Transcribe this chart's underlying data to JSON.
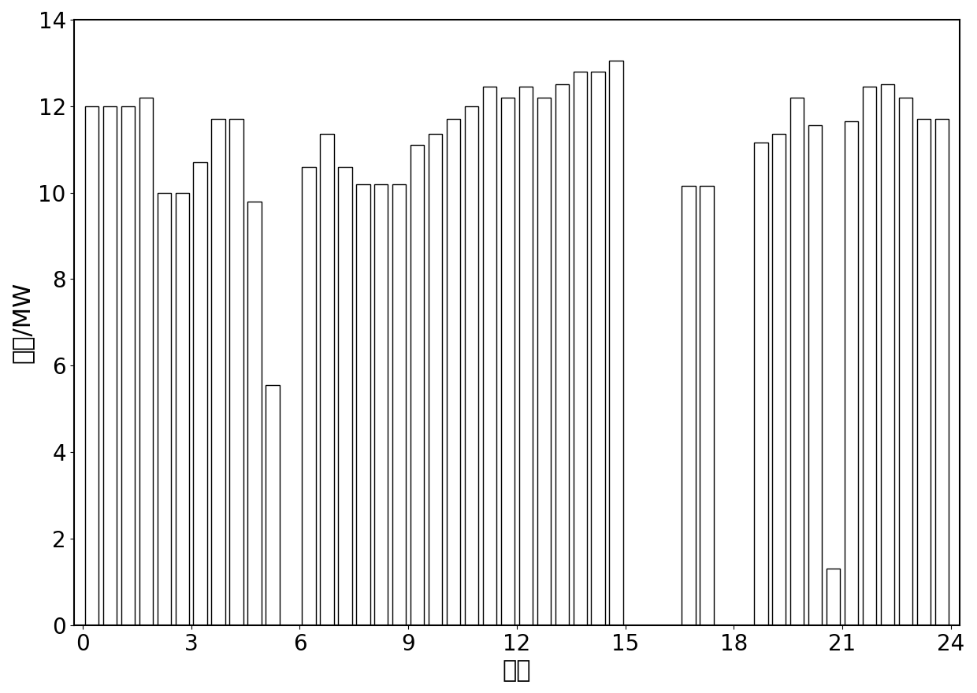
{
  "xlabel": "时刻",
  "ylabel": "功率/MW",
  "xlim": [
    -0.25,
    24.25
  ],
  "ylim": [
    0,
    14
  ],
  "xticks": [
    0,
    3,
    6,
    9,
    12,
    15,
    18,
    21,
    24
  ],
  "yticks": [
    0,
    2,
    4,
    6,
    8,
    10,
    12,
    14
  ],
  "bar_positions": [
    0.25,
    0.75,
    1.25,
    1.75,
    2.25,
    2.75,
    3.25,
    3.75,
    4.25,
    4.75,
    5.25,
    5.75,
    6.25,
    6.75,
    7.25,
    7.75,
    8.25,
    8.75,
    9.25,
    9.75,
    10.25,
    10.75,
    11.25,
    11.75,
    12.25,
    12.75,
    13.25,
    13.75,
    14.25,
    14.75,
    16.75,
    17.25,
    17.75,
    18.25,
    18.75,
    19.25,
    19.75,
    20.25,
    20.75,
    21.25,
    21.75,
    22.25,
    22.75,
    23.25,
    23.75
  ],
  "bar_heights": [
    12.0,
    12.0,
    12.0,
    12.2,
    10.0,
    10.0,
    10.7,
    11.7,
    11.7,
    9.8,
    5.55,
    0.0,
    10.6,
    11.35,
    10.6,
    10.2,
    10.2,
    10.2,
    11.1,
    11.35,
    11.7,
    12.0,
    12.45,
    12.2,
    12.45,
    12.2,
    12.5,
    12.8,
    12.8,
    13.05,
    10.15,
    10.15,
    0.0,
    0.0,
    11.15,
    11.35,
    12.2,
    11.55,
    1.3,
    11.65,
    12.45,
    12.5,
    12.2,
    11.7,
    11.7
  ],
  "background_color": "#ffffff",
  "bar_color": "#ffffff",
  "bar_edgecolor": "#000000",
  "bar_width": 0.38,
  "tick_fontsize": 20,
  "label_fontsize": 22,
  "spine_linewidth": 1.5
}
